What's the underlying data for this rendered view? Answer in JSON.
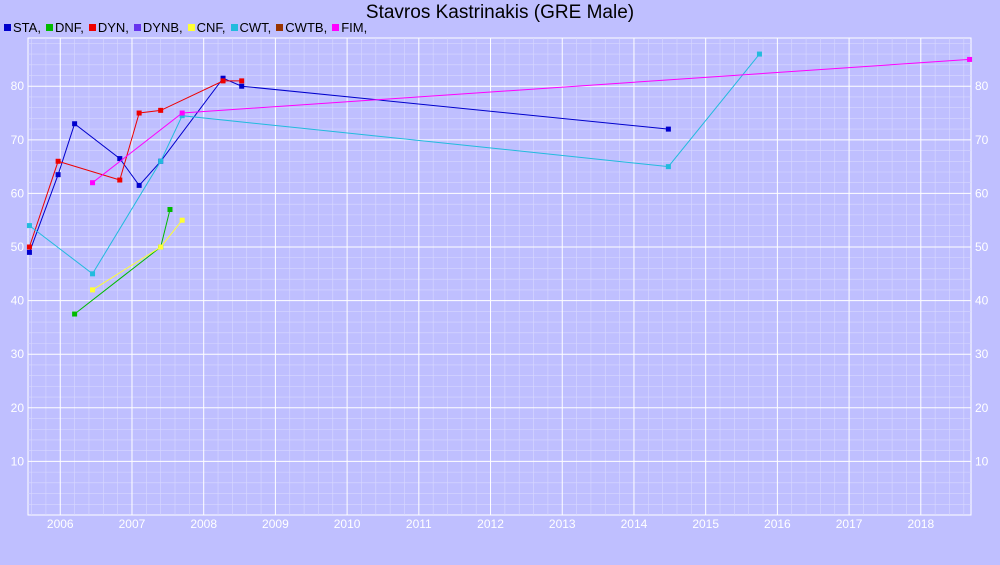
{
  "chart_data": {
    "type": "line",
    "title": "Stavros Kastrinakis (GRE Male)",
    "xlabel": "",
    "ylabel": "",
    "xlim": [
      2005.55,
      2018.7
    ],
    "ylim": [
      0,
      89
    ],
    "x_ticks": [
      2006,
      2007,
      2008,
      2009,
      2010,
      2011,
      2012,
      2013,
      2014,
      2015,
      2016,
      2017,
      2018
    ],
    "y_ticks": [
      10,
      20,
      30,
      40,
      50,
      60,
      70,
      80
    ],
    "grid": true,
    "legend_position": "top-left",
    "legend": [
      {
        "name": "STA,",
        "color": "#0000cc"
      },
      {
        "name": "DNF,",
        "color": "#00bb00"
      },
      {
        "name": "DYN,",
        "color": "#ee0000"
      },
      {
        "name": "DYNB,",
        "color": "#6633ee"
      },
      {
        "name": "CNF,",
        "color": "#ffff33"
      },
      {
        "name": "CWT,",
        "color": "#22bbdd"
      },
      {
        "name": "CWTB,",
        "color": "#993300"
      },
      {
        "name": "FIM,",
        "color": "#ff00ff"
      }
    ],
    "series": [
      {
        "name": "STA,",
        "color": "#0000cc",
        "points": [
          [
            2005.57,
            49
          ],
          [
            2005.97,
            63.5
          ],
          [
            2006.2,
            73
          ],
          [
            2006.83,
            66.5
          ],
          [
            2007.1,
            61.5
          ],
          [
            2007.4,
            66
          ],
          [
            2008.27,
            81.5
          ],
          [
            2008.53,
            80
          ],
          [
            2014.48,
            72
          ]
        ]
      },
      {
        "name": "DNF,",
        "color": "#00bb00",
        "points": [
          [
            2006.2,
            37.5
          ],
          [
            2007.4,
            50
          ],
          [
            2007.53,
            57
          ]
        ]
      },
      {
        "name": "DYN,",
        "color": "#ee0000",
        "points": [
          [
            2005.57,
            50
          ],
          [
            2005.97,
            66
          ],
          [
            2006.83,
            62.5
          ],
          [
            2007.1,
            75
          ],
          [
            2007.4,
            75.5
          ],
          [
            2008.27,
            81
          ],
          [
            2008.53,
            81
          ]
        ]
      },
      {
        "name": "CNF,",
        "color": "#ffff33",
        "points": [
          [
            2006.45,
            42
          ],
          [
            2007.4,
            50
          ],
          [
            2007.7,
            55
          ]
        ]
      },
      {
        "name": "CWT,",
        "color": "#22bbdd",
        "points": [
          [
            2005.57,
            54
          ],
          [
            2006.45,
            45
          ],
          [
            2007.4,
            66
          ],
          [
            2007.7,
            74.5
          ],
          [
            2014.48,
            65
          ],
          [
            2015.75,
            86
          ]
        ]
      },
      {
        "name": "FIM,",
        "color": "#ff00ff",
        "points": [
          [
            2006.45,
            62
          ],
          [
            2007.7,
            75
          ],
          [
            2018.68,
            85
          ]
        ]
      }
    ]
  }
}
